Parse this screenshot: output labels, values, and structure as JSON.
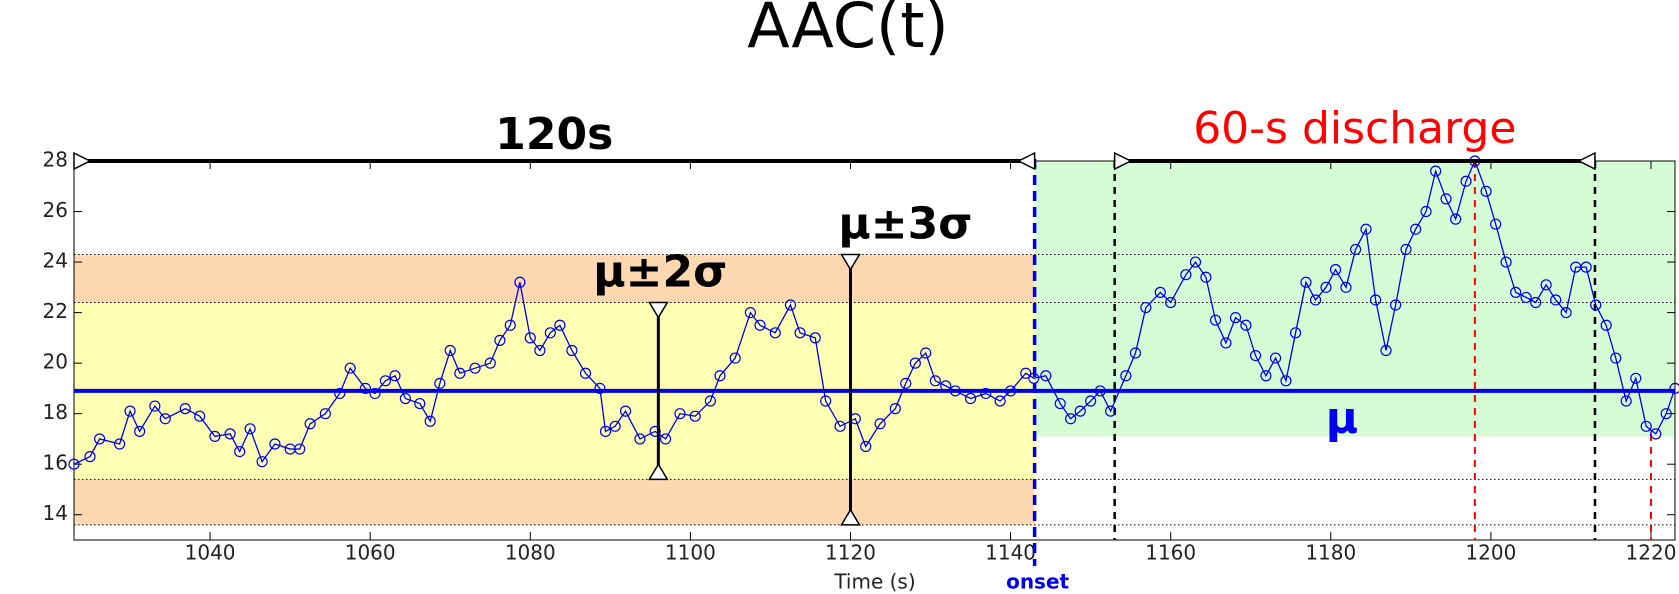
{
  "chart_data": {
    "type": "line",
    "title": "AAC(t)",
    "xlabel": "Time (s)",
    "xlim": [
      1023,
      1223
    ],
    "ylim": [
      13,
      28
    ],
    "xticks": [
      1040,
      1060,
      1080,
      1100,
      1120,
      1140,
      1160,
      1180,
      1200,
      1220
    ],
    "yticks": [
      14,
      16,
      18,
      20,
      22,
      24,
      26,
      28
    ],
    "x": [
      1023.0,
      1025.0,
      1026.2,
      1028.7,
      1030.0,
      1031.2,
      1033.1,
      1034.4,
      1036.9,
      1038.7,
      1040.6,
      1042.5,
      1043.7,
      1045.0,
      1046.5,
      1048.1,
      1050.0,
      1051.2,
      1052.5,
      1054.4,
      1056.2,
      1057.5,
      1059.4,
      1060.6,
      1061.9,
      1063.1,
      1064.4,
      1066.2,
      1067.5,
      1068.7,
      1070.0,
      1071.2,
      1073.1,
      1075.0,
      1076.2,
      1077.5,
      1078.7,
      1080.0,
      1081.2,
      1082.5,
      1083.7,
      1085.2,
      1086.9,
      1088.7,
      1089.4,
      1090.6,
      1091.9,
      1093.7,
      1095.6,
      1096.9,
      1098.7,
      1100.6,
      1102.5,
      1103.7,
      1105.6,
      1107.5,
      1108.7,
      1110.6,
      1112.5,
      1113.7,
      1115.6,
      1116.9,
      1118.7,
      1120.6,
      1121.9,
      1123.7,
      1125.6,
      1126.9,
      1128.1,
      1129.4,
      1130.6,
      1131.9,
      1133.1,
      1135.0,
      1136.9,
      1138.7,
      1140.0,
      1141.9,
      1142.9,
      1144.4,
      1146.2,
      1147.5,
      1148.7,
      1150.0,
      1151.2,
      1152.5,
      1154.4,
      1155.6,
      1156.9,
      1158.7,
      1160.0,
      1161.9,
      1163.1,
      1164.4,
      1165.6,
      1166.9,
      1168.1,
      1169.4,
      1170.6,
      1171.9,
      1173.1,
      1174.4,
      1175.6,
      1176.9,
      1178.1,
      1179.4,
      1180.6,
      1181.9,
      1183.1,
      1184.4,
      1185.6,
      1186.9,
      1188.1,
      1189.4,
      1190.6,
      1191.9,
      1193.1,
      1194.4,
      1195.6,
      1196.9,
      1198.0,
      1199.4,
      1200.6,
      1201.9,
      1203.1,
      1204.4,
      1205.6,
      1206.9,
      1208.1,
      1209.4,
      1210.6,
      1211.9,
      1213.1,
      1214.4,
      1215.6,
      1216.9,
      1218.1,
      1219.4,
      1220.6,
      1221.9,
      1223.0
    ],
    "series": [
      {
        "color": "#0000ee",
        "values": [
          16.0,
          16.3,
          17.0,
          16.8,
          18.1,
          17.3,
          18.3,
          17.8,
          18.2,
          17.9,
          17.1,
          17.2,
          16.5,
          17.4,
          16.1,
          16.8,
          16.6,
          16.6,
          17.6,
          18.0,
          18.8,
          19.8,
          19.0,
          18.8,
          19.3,
          19.5,
          18.6,
          18.4,
          17.7,
          19.2,
          20.5,
          19.6,
          19.8,
          20.0,
          20.9,
          21.5,
          23.2,
          21.0,
          20.5,
          21.2,
          21.5,
          20.5,
          19.6,
          19.0,
          17.3,
          17.5,
          18.1,
          17.0,
          17.3,
          17.0,
          18.0,
          17.9,
          18.5,
          19.5,
          20.2,
          22.0,
          21.5,
          21.2,
          22.3,
          21.2,
          21.0,
          18.5,
          17.5,
          17.8,
          16.7,
          17.6,
          18.2,
          19.2,
          20.0,
          20.4,
          19.3,
          19.1,
          18.9,
          18.6,
          18.8,
          18.5,
          18.9,
          19.6,
          19.4,
          19.5,
          18.4,
          17.8,
          18.1,
          18.5,
          18.9,
          18.1,
          19.5,
          20.4,
          22.2,
          22.8,
          22.4,
          23.5,
          24.0,
          23.4,
          21.7,
          20.8,
          21.8,
          21.5,
          20.3,
          19.5,
          20.2,
          19.3,
          21.2,
          23.2,
          22.5,
          23.0,
          23.7,
          23.0,
          24.5,
          25.3,
          22.5,
          20.5,
          22.3,
          24.5,
          25.3,
          26.0,
          27.6,
          26.5,
          25.7,
          27.2,
          28.0,
          26.8,
          25.5,
          24.0,
          22.8,
          22.6,
          22.4,
          23.1,
          22.5,
          22.0,
          23.8,
          23.8,
          22.3,
          21.5,
          20.2,
          18.5,
          19.4,
          17.5,
          17.2,
          18.0,
          19.0
        ]
      }
    ],
    "mean": {
      "value": 18.9,
      "label": "μ",
      "color": "#0000ee"
    },
    "bands": [
      {
        "label": "μ±2σ",
        "range": [
          15.4,
          22.4
        ],
        "color": "#ffffb3",
        "x": 1096
      },
      {
        "label": "μ±3σ",
        "range": [
          13.6,
          24.3
        ],
        "color": "#fdd8b0",
        "x": 1120
      }
    ],
    "onset": {
      "value": 1143,
      "label": "onset",
      "color": "#0000ee"
    },
    "baseline_window": {
      "label": "120s",
      "range": [
        1023,
        1143
      ]
    },
    "discharge": {
      "label": "60-s discharge",
      "range": [
        1153,
        1213
      ],
      "color": "#ff0000",
      "fill": "#d6fcd6",
      "threshold": 17.1
    },
    "markers": [
      {
        "x": 1198,
        "y": 28.0
      },
      {
        "x": 1220,
        "y": 17.2
      }
    ]
  }
}
